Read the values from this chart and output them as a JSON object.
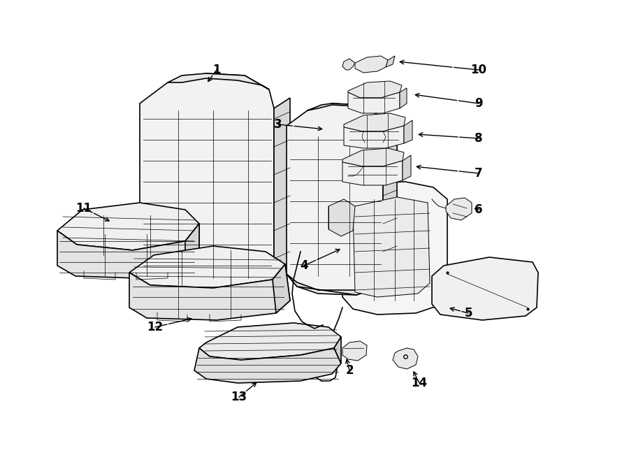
{
  "background_color": "#ffffff",
  "line_color": "#000000",
  "fig_width": 9.0,
  "fig_height": 6.61,
  "dpi": 100,
  "fill_color": "#f5f5f5",
  "fill_dark": "#e0e0e0",
  "lw_main": 1.2,
  "lw_detail": 0.7,
  "lw_thin": 0.5
}
